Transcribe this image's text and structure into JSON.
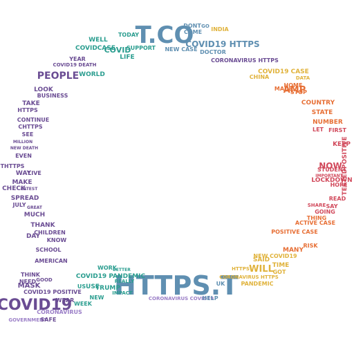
{
  "colors": {
    "purple": "#6a4c93",
    "teal": "#2a9d8f",
    "steel": "#5f8fb1",
    "gold": "#e0b23a",
    "orange": "#e76f35",
    "red": "#d1495b",
    "lavender": "#9b7fc7"
  },
  "words": [
    {
      "text": "T.CO",
      "c": "steel"
    },
    {
      "text": "HTTPS.T",
      "c": "steel"
    },
    {
      "text": "COVID19",
      "c": "purple"
    },
    {
      "text": "COVID19 HTTPS",
      "c": "steel"
    },
    {
      "text": "AMP",
      "c": "orange"
    },
    {
      "text": "PEOPLE",
      "c": "purple"
    },
    {
      "text": "NOW",
      "c": "red"
    },
    {
      "text": "WILL",
      "c": "gold"
    },
    {
      "text": "NEW CASE",
      "c": "steel"
    },
    {
      "text": "COVID",
      "c": "teal"
    },
    {
      "text": "TODAY",
      "c": "teal"
    },
    {
      "text": "CORONAVIRUS HTTPS",
      "c": "purple"
    },
    {
      "text": "COVID19 CASE",
      "c": "gold"
    },
    {
      "text": "LOOK",
      "c": "purple"
    },
    {
      "text": "BUSINESS",
      "c": "purple"
    },
    {
      "text": "TAKE",
      "c": "purple"
    },
    {
      "text": "HTTPS",
      "c": "purple"
    },
    {
      "text": "CONTINUE",
      "c": "purple"
    },
    {
      "text": "CHTTPS",
      "c": "purple"
    },
    {
      "text": "SEE",
      "c": "purple"
    },
    {
      "text": "MILLION",
      "c": "purple"
    },
    {
      "text": "NEW DEATH",
      "c": "purple"
    },
    {
      "text": "EVEN",
      "c": "purple"
    },
    {
      "text": "THTTPS",
      "c": "purple"
    },
    {
      "text": "WAY",
      "c": "purple"
    },
    {
      "text": "LIVE",
      "c": "purple"
    },
    {
      "text": "MAKE",
      "c": "purple"
    },
    {
      "text": "CHECK",
      "c": "purple"
    },
    {
      "text": "LATEST",
      "c": "purple"
    },
    {
      "text": "SPREAD",
      "c": "purple"
    },
    {
      "text": "JULY",
      "c": "purple"
    },
    {
      "text": "GREAT",
      "c": "purple"
    },
    {
      "text": "MUCH",
      "c": "purple"
    },
    {
      "text": "THANK",
      "c": "purple"
    },
    {
      "text": "CHILDREN",
      "c": "purple"
    },
    {
      "text": "DAY",
      "c": "purple"
    },
    {
      "text": "KNOW",
      "c": "purple"
    },
    {
      "text": "SCHOOL",
      "c": "purple"
    },
    {
      "text": "AMERICAN",
      "c": "purple"
    },
    {
      "text": "THINK",
      "c": "purple"
    },
    {
      "text": "NEED",
      "c": "purple"
    },
    {
      "text": "GOOD",
      "c": "purple"
    },
    {
      "text": "MASK",
      "c": "purple"
    },
    {
      "text": "COVID19 POSITIVE",
      "c": "purple"
    },
    {
      "text": "CORONAVIRUS",
      "c": "lavender"
    },
    {
      "text": "GOVERNMENT",
      "c": "lavender"
    },
    {
      "text": "SAFE",
      "c": "purple"
    },
    {
      "text": "WEAR",
      "c": "purple"
    },
    {
      "text": "WEEK",
      "c": "teal"
    },
    {
      "text": "NEW",
      "c": "teal"
    },
    {
      "text": "TRUMP",
      "c": "teal"
    },
    {
      "text": "US",
      "c": "teal"
    },
    {
      "text": "USE",
      "c": "teal"
    },
    {
      "text": "COVID19 PANDEMIC",
      "c": "teal"
    },
    {
      "text": "WORK",
      "c": "teal"
    },
    {
      "text": "BETTER",
      "c": "teal"
    },
    {
      "text": "REALLY",
      "c": "teal"
    },
    {
      "text": "IMPACT",
      "c": "teal"
    },
    {
      "text": "CORONAVIRUS COVID19",
      "c": "lavender"
    },
    {
      "text": "HELP",
      "c": "steel"
    },
    {
      "text": "UK",
      "c": "steel"
    },
    {
      "text": "CORONAVIRUS HTTPS",
      "c": "gold"
    },
    {
      "text": "PANDEMIC",
      "c": "gold"
    },
    {
      "text": "TIME",
      "c": "gold"
    },
    {
      "text": "SAID",
      "c": "gold"
    },
    {
      "text": "NEW COVID19",
      "c": "gold"
    },
    {
      "text": "GOT",
      "c": "gold"
    },
    {
      "text": "MANY",
      "c": "orange"
    },
    {
      "text": "RISK",
      "c": "orange"
    },
    {
      "text": "POSITIVE CASE",
      "c": "orange"
    },
    {
      "text": "ACTIVE CASE",
      "c": "orange"
    },
    {
      "text": "THING",
      "c": "orange"
    },
    {
      "text": "GOING",
      "c": "red"
    },
    {
      "text": "SAY",
      "c": "red"
    },
    {
      "text": "SHARE",
      "c": "red"
    },
    {
      "text": "READ",
      "c": "red"
    },
    {
      "text": "HOPE",
      "c": "red"
    },
    {
      "text": "LOCKDOWN",
      "c": "red"
    },
    {
      "text": "IMPORTANT",
      "c": "red"
    },
    {
      "text": "STUDENT",
      "c": "red"
    },
    {
      "text": "KEEP",
      "c": "red"
    },
    {
      "text": "FIRST",
      "c": "red"
    },
    {
      "text": "LET",
      "c": "red"
    },
    {
      "text": "NUMBER",
      "c": "orange"
    },
    {
      "text": "STATE",
      "c": "orange"
    },
    {
      "text": "COUNTRY",
      "c": "orange"
    },
    {
      "text": "STOP",
      "c": "orange"
    },
    {
      "text": "MADE",
      "c": "orange"
    },
    {
      "text": "HOME",
      "c": "orange"
    },
    {
      "text": "CHINA",
      "c": "gold"
    },
    {
      "text": "DATA",
      "c": "gold"
    },
    {
      "text": "INDIA",
      "c": "gold"
    },
    {
      "text": "DONT",
      "c": "steel"
    },
    {
      "text": "COME",
      "c": "steel"
    },
    {
      "text": "GO",
      "c": "steel"
    },
    {
      "text": "SUPPORT",
      "c": "teal"
    },
    {
      "text": "LIFE",
      "c": "teal"
    },
    {
      "text": "WORLD",
      "c": "teal"
    },
    {
      "text": "COVIDCASE",
      "c": "teal"
    },
    {
      "text": "WELL",
      "c": "teal"
    },
    {
      "text": "YEAR",
      "c": "purple"
    },
    {
      "text": "COVID19 DEATH",
      "c": "purple"
    },
    {
      "text": "DOCTOR",
      "c": "steel"
    },
    {
      "text": "TESTEDPOSITIVE",
      "c": "red"
    },
    {
      "text": "HTTPS",
      "c": "gold"
    }
  ]
}
